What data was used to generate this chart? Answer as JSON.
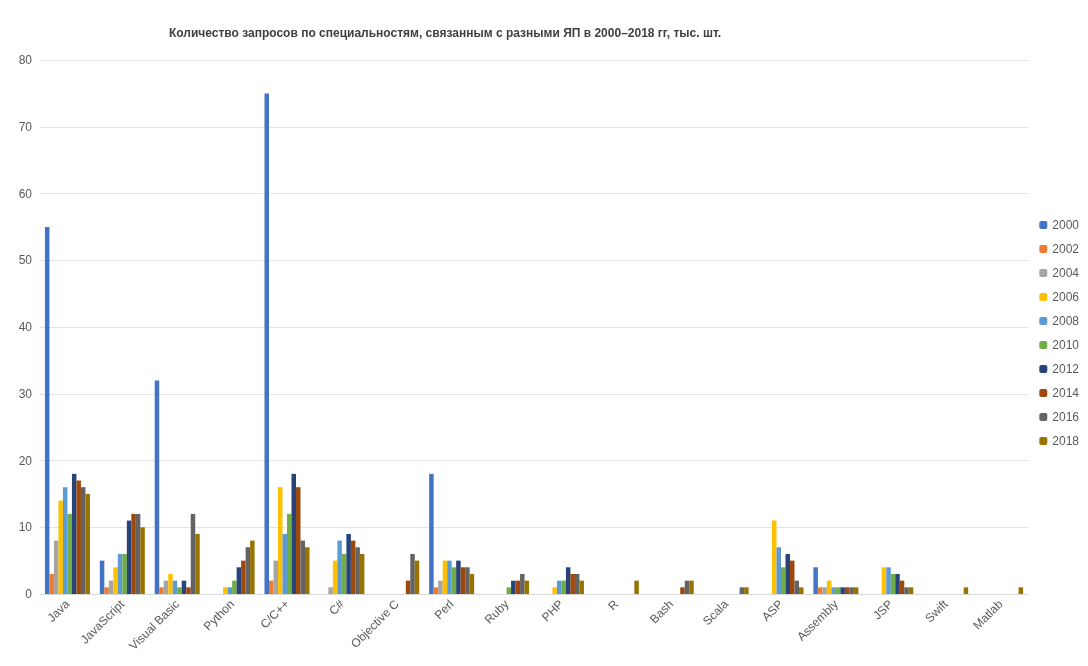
{
  "chart_data": {
    "type": "bar",
    "title": "Количество запросов по специальностям, связанным с разными ЯП в 2000–2018 гг, тыс. шт.",
    "categories": [
      "Java",
      "JavaScript",
      "Visual Basic",
      "Python",
      "C/C++",
      "C#",
      "Objective C",
      "Perl",
      "Ruby",
      "PHP",
      "R",
      "Bash",
      "Scala",
      "ASP",
      "Assembly",
      "JSP",
      "Swift",
      "Matlab"
    ],
    "series": [
      {
        "name": "2000",
        "color": "#4472c4",
        "values": [
          55,
          5,
          32,
          0,
          75,
          0,
          0,
          18,
          0,
          0,
          0,
          0,
          0,
          0,
          4,
          0,
          0,
          0
        ]
      },
      {
        "name": "2002",
        "color": "#ed7d31",
        "values": [
          3,
          1,
          1,
          0,
          2,
          0,
          0,
          1,
          0,
          0,
          0,
          0,
          0,
          0,
          1,
          0,
          0,
          0
        ]
      },
      {
        "name": "2004",
        "color": "#a5a5a5",
        "values": [
          8,
          2,
          2,
          0,
          5,
          1,
          0,
          2,
          0,
          0,
          0,
          0,
          0,
          0,
          1,
          0,
          0,
          0
        ]
      },
      {
        "name": "2006",
        "color": "#ffc000",
        "values": [
          14,
          4,
          3,
          1,
          16,
          5,
          0,
          5,
          0,
          1,
          0,
          0,
          0,
          11,
          2,
          4,
          0,
          0
        ]
      },
      {
        "name": "2008",
        "color": "#5b9bd5",
        "values": [
          16,
          6,
          2,
          1,
          9,
          8,
          0,
          5,
          0,
          2,
          0,
          0,
          0,
          7,
          1,
          4,
          0,
          0
        ]
      },
      {
        "name": "2010",
        "color": "#70ad47",
        "values": [
          12,
          6,
          1,
          2,
          12,
          6,
          0,
          4,
          1,
          2,
          0,
          0,
          0,
          4,
          1,
          3,
          0,
          0
        ]
      },
      {
        "name": "2012",
        "color": "#264478",
        "values": [
          18,
          11,
          2,
          4,
          18,
          9,
          0,
          5,
          2,
          4,
          0,
          0,
          0,
          6,
          1,
          3,
          0,
          0
        ]
      },
      {
        "name": "2014",
        "color": "#9e480e",
        "values": [
          17,
          12,
          1,
          5,
          16,
          8,
          2,
          4,
          2,
          3,
          0,
          1,
          0,
          5,
          1,
          2,
          0,
          0
        ]
      },
      {
        "name": "2016",
        "color": "#636363",
        "values": [
          16,
          12,
          12,
          7,
          8,
          7,
          6,
          4,
          3,
          3,
          0,
          2,
          1,
          2,
          1,
          1,
          0,
          0
        ]
      },
      {
        "name": "2018",
        "color": "#997300",
        "values": [
          15,
          10,
          9,
          8,
          7,
          6,
          5,
          3,
          2,
          2,
          2,
          2,
          1,
          1,
          1,
          1,
          1,
          1
        ]
      }
    ],
    "ylim": [
      0,
      80
    ],
    "yticks": [
      0,
      10,
      20,
      30,
      40,
      50,
      60,
      70,
      80
    ],
    "grid": "y",
    "legend": "right"
  }
}
